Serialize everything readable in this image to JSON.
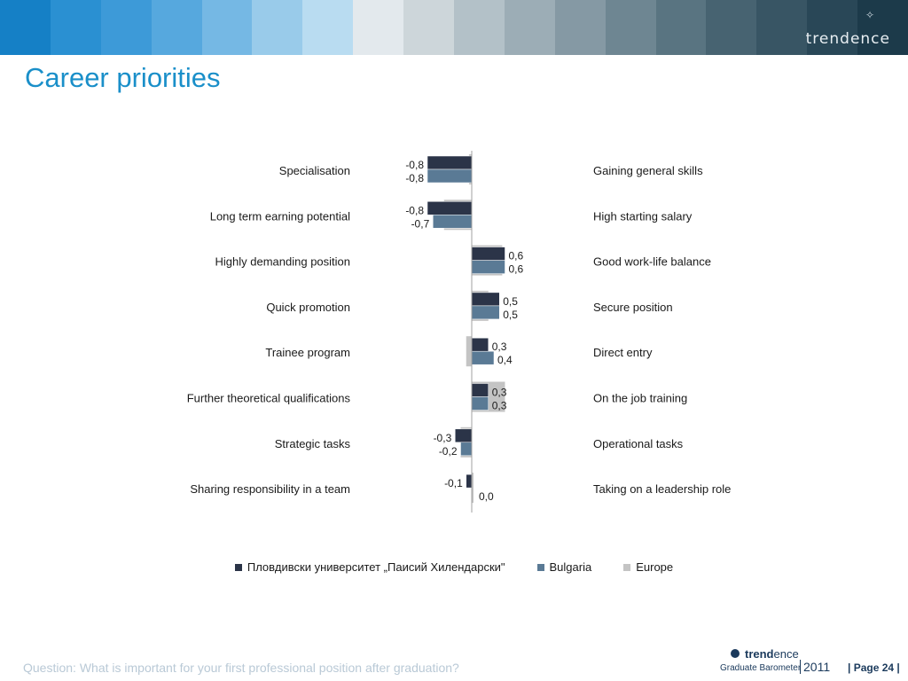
{
  "header": {
    "brand": "trendence",
    "band_colors": [
      "#1580c6",
      "#2a90d2",
      "#3d9ad8",
      "#56a8de",
      "#75b8e4",
      "#99cbea",
      "#b9dcf1",
      "#e3e9ed",
      "#cdd6da",
      "#b3c1c8",
      "#9cadb6",
      "#8599a4",
      "#6e8692",
      "#597481",
      "#476371",
      "#385564",
      "#294757",
      "#1c3a4a"
    ]
  },
  "page_title": "Career priorities",
  "chart_data": {
    "type": "bar",
    "orientation": "horizontal",
    "left_labels": [
      "Specialisation",
      "Long term earning potential",
      "Highly demanding position",
      "Quick promotion",
      "Trainee program",
      "Further theoretical qualifications",
      "Strategic tasks",
      "Sharing responsibility in a team"
    ],
    "right_labels": [
      "Gaining general skills",
      "High starting salary",
      "Good work-life balance",
      "Secure position",
      "Direct entry",
      "On the job training",
      "Operational tasks",
      "Taking on a leadership role"
    ],
    "xlim": [
      -1,
      1
    ],
    "series": [
      {
        "name": "Пловдивски университет „Паисий Хилендарски\"",
        "color": "#2b3448",
        "values": [
          -0.8,
          -0.8,
          0.6,
          0.5,
          0.3,
          0.3,
          -0.3,
          -0.1
        ],
        "labels": [
          "-0,8",
          "-0,8",
          "0,6",
          "0,5",
          "0,3",
          "0,3",
          "-0,3",
          "-0,1"
        ]
      },
      {
        "name": "Bulgaria",
        "color": "#5a7a95",
        "values": [
          -0.8,
          -0.7,
          0.6,
          0.5,
          0.4,
          0.3,
          -0.2,
          0.0
        ],
        "labels": [
          "-0,8",
          "-0,7",
          "0,6",
          "0,5",
          "0,4",
          "0,3",
          "-0,2",
          "0,0"
        ]
      },
      {
        "name": "Europe",
        "color": "#c4c4c4",
        "values": [
          -0.05,
          -0.5,
          0.55,
          0.3,
          -0.1,
          0.6,
          -0.2,
          0.0
        ],
        "labels": []
      }
    ]
  },
  "footer": {
    "question": "Question: What is important for your first professional position after graduation?",
    "logo_brand_bold": "trend",
    "logo_brand_light": "ence",
    "logo_sub": "Graduate Barometer",
    "logo_year": "2011",
    "page": "| Page 24 |"
  }
}
